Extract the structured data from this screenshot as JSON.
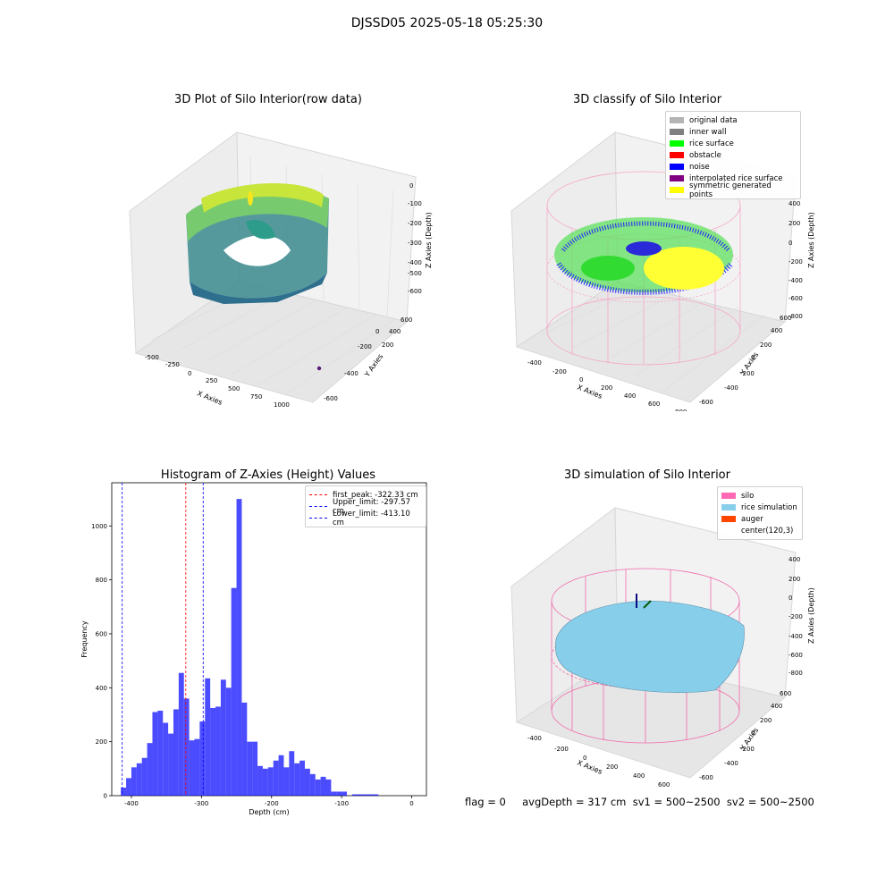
{
  "figure": {
    "suptitle": "DJSSD05 2025-05-18 05:25:30",
    "footer": "flag = 0     avgDepth = 317 cm  sv1 = 500~2500  sv2 = 500~2500"
  },
  "panels": {
    "raw": {
      "title": "3D Plot of Silo Interior(row data)",
      "xlabel": "X Axies",
      "ylabel": "Y Axies",
      "zlabel": "Z Axies (Depth)",
      "xticks": [
        "-500",
        "-250",
        "0",
        "250",
        "500",
        "750",
        "1000"
      ],
      "yticks": [
        "-600",
        "-400",
        "-200",
        "0",
        "200",
        "400",
        "600"
      ],
      "zticks": [
        "0",
        "-100",
        "-200",
        "-300",
        "-400",
        "-500",
        "-600"
      ]
    },
    "classify": {
      "title": "3D classify of Silo Interior",
      "xlabel": "X Axies",
      "ylabel": "Y Axies",
      "zlabel": "Z Axies (Depth)",
      "xticks": [
        "-400",
        "-200",
        "0",
        "200",
        "400",
        "600",
        "800"
      ],
      "yticks": [
        "-600",
        "-400",
        "-200",
        "0",
        "200",
        "400",
        "600"
      ],
      "zticks": [
        "400",
        "200",
        "0",
        "-200",
        "-400",
        "-600",
        "-800"
      ],
      "legend": [
        {
          "label": "original data",
          "color": "#b4b4b4"
        },
        {
          "label": "inner wall",
          "color": "#808080"
        },
        {
          "label": "rice surface",
          "color": "#00ff00"
        },
        {
          "label": "obstacle",
          "color": "#ff0000"
        },
        {
          "label": "noise",
          "color": "#0000ff"
        },
        {
          "label": "interpolated rice surface",
          "color": "#800080"
        },
        {
          "label": "symmetric generated points",
          "color": "#ffff00"
        }
      ]
    },
    "simulation": {
      "title": "3D simulation of Silo Interior",
      "xlabel": "X Axies",
      "ylabel": "Y Axies",
      "zlabel": "Z Axies (Depth)",
      "xticks": [
        "-400",
        "-200",
        "0",
        "200",
        "400",
        "600"
      ],
      "yticks": [
        "-600",
        "-400",
        "-200",
        "0",
        "200",
        "400",
        "600"
      ],
      "zticks": [
        "400",
        "200",
        "0",
        "-200",
        "-400",
        "-600",
        "-800"
      ],
      "legend": [
        {
          "label": "silo",
          "color": "#ff69b4"
        },
        {
          "label": "rice simulation",
          "color": "#87ceeb"
        },
        {
          "label": "auger",
          "color": "#ff4500"
        },
        {
          "label": "center(120,3)",
          "color": "#ffffff"
        }
      ]
    }
  },
  "chart_data": {
    "type": "bar",
    "title": "Histogram of Z-Axies (Height) Values",
    "xlabel": "Depth (cm)",
    "ylabel": "Frequency",
    "xlim": [
      -428,
      21
    ],
    "ylim": [
      0,
      1160
    ],
    "xticks": [
      -400,
      -300,
      -200,
      -100,
      0
    ],
    "yticks": [
      0,
      200,
      400,
      600,
      800,
      1000
    ],
    "bar_color": "#0000ff",
    "bin_start": -415,
    "bin_width": 7.5,
    "values": [
      30,
      65,
      105,
      120,
      140,
      195,
      310,
      315,
      270,
      230,
      320,
      455,
      360,
      205,
      210,
      275,
      435,
      325,
      330,
      430,
      400,
      770,
      1100,
      345,
      200,
      200,
      110,
      100,
      105,
      130,
      150,
      105,
      165,
      120,
      130,
      100,
      80,
      60,
      70,
      60,
      15,
      15,
      15,
      0,
      5,
      5,
      5,
      5,
      5,
      0
    ],
    "vlines": [
      {
        "label": "first_peak: -322.33 cm",
        "x": -322.33,
        "color": "#ff0000"
      },
      {
        "label": "Upper_limit: -297.57 cm",
        "x": -297.57,
        "color": "#0000ff"
      },
      {
        "label": "Lower_limit: -413.10 cm",
        "x": -413.1,
        "color": "#0000ff"
      }
    ],
    "legend_position": "upper right"
  }
}
